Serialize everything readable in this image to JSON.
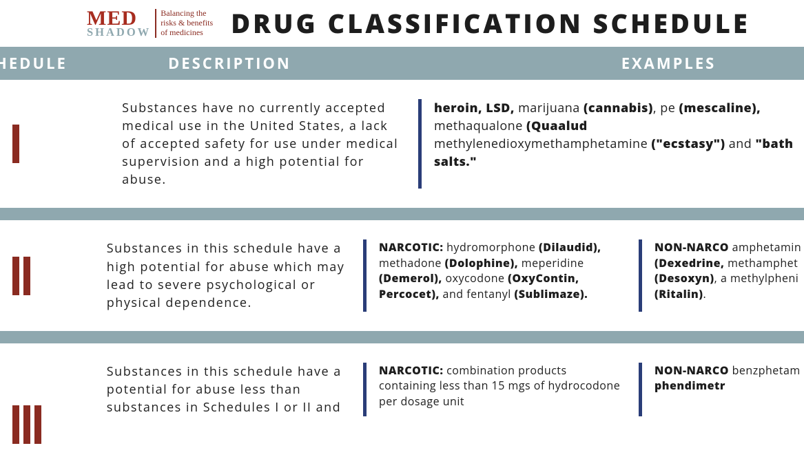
{
  "colors": {
    "band": "#8fa8af",
    "maroon": "#8a2b21",
    "navy": "#2a3d78",
    "logo_med": "#a72c1f",
    "logo_shadow": "#8fa8af",
    "tagline": "#8a2b21",
    "title": "#1d1d1d"
  },
  "logo": {
    "med": "MED",
    "shadow": "SHADOW",
    "tagline": "Balancing the\nrisks & benefits\nof medicines"
  },
  "title": "DRUG CLASSIFICATION SCHEDULE",
  "headers": {
    "schedule": "CHEDULE",
    "description": "DESCRIPTION",
    "examples": "EXAMPLES"
  },
  "rows": {
    "r1": {
      "bars": 1,
      "description": "Substances have no currently accepted medical use in the United States, a lack of accepted safety for use under medical supervision and a high potential for abuse.",
      "example_wide_html": "<b>heroin, LSD,</b> marijuana <b>(cannabis)</b>, pe <b>(mescaline),</b> methaqualone <b>(Quaalud</b> methylenedioxymethamphetamine <b>(\"ecstasy\")</b> and <b>\"bath salts.\"</b>"
    },
    "r2": {
      "bars": 2,
      "description": "Substances in this schedule have a high potential for abuse which may lead to severe psychological or physical dependence.",
      "example_a_html": "<b>NARCOTIC:</b> hydromorphone <b>(Dilaudid),</b> methadone <b>(Dolophine),</b> meperidine <b>(Demerol),</b> oxycodone <b>(OxyContin, Percocet),</b> and fentanyl <b>(Sublimaze).</b>",
      "example_b_html": "<b>NON-NARCO</b> amphetamin <b>(Dexedrine,</b> methamphet <b>(Desoxyn)</b>, a methylpheni <b>(Ritalin)</b>."
    },
    "r3": {
      "bars": 3,
      "description": "Substances in this schedule have a potential for abuse less than substances in Schedules I or II and",
      "example_a_html": "<b>NARCOTIC:</b> combination products containing less than 15 mgs of hydrocodone per dosage unit",
      "example_b_html": "<b>NON-NARCO</b> benzphetam <b>phendimetr</b>"
    }
  }
}
